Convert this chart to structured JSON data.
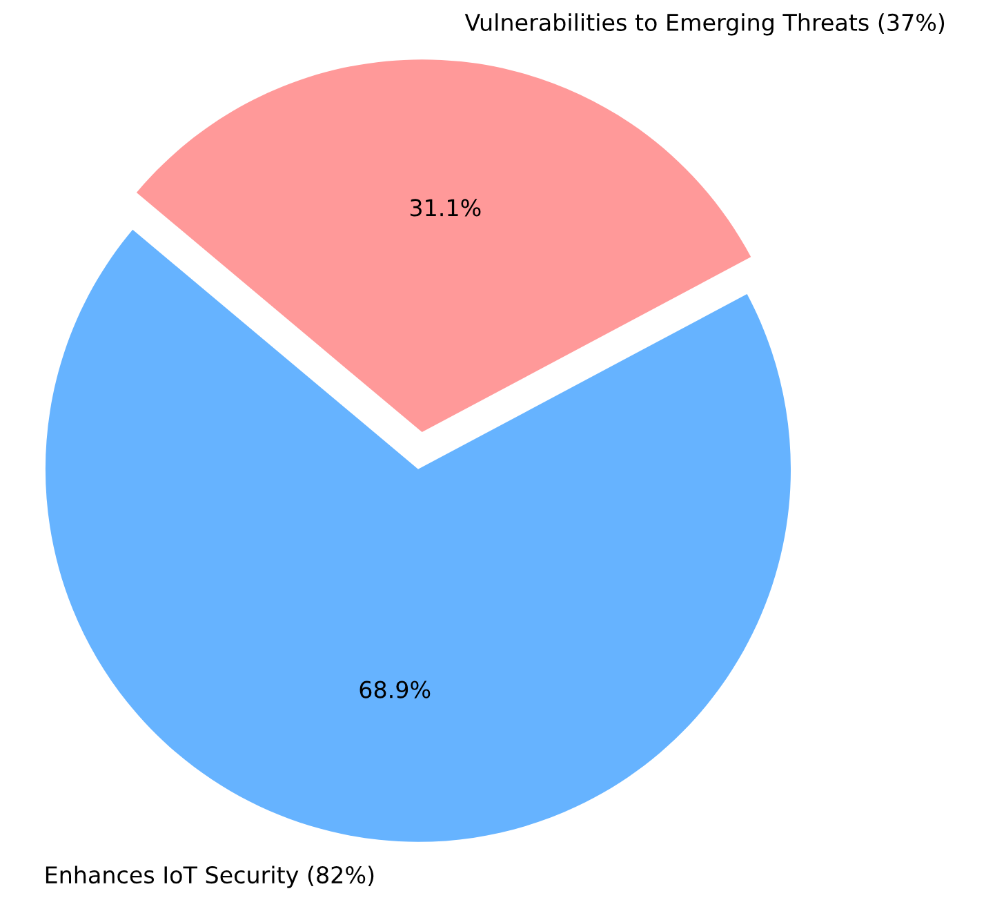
{
  "chart_data": {
    "type": "pie",
    "categories": [
      "Enhances IoT Security (82%)",
      "Vulnerabilities to Emerging Threats (37%)"
    ],
    "values": [
      68.9,
      31.1
    ],
    "colors": [
      "#66b3ff",
      "#ff9999"
    ],
    "value_labels": [
      "68.9%",
      "31.1%"
    ]
  }
}
